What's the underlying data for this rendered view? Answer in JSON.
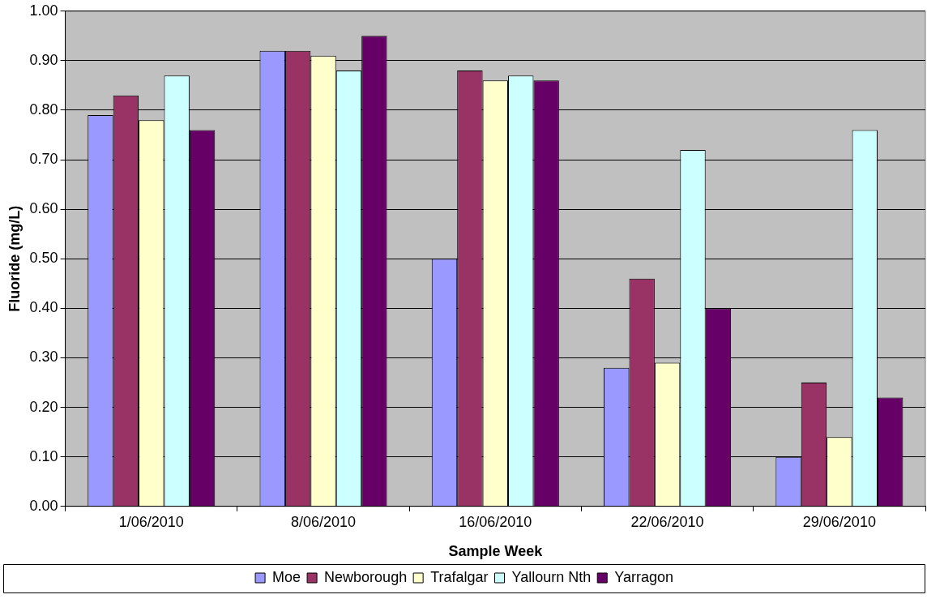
{
  "chart_data": {
    "type": "bar",
    "xlabel": "Sample Week",
    "ylabel": "Fluoride (mg/L)",
    "categories": [
      "1/06/2010",
      "8/06/2010",
      "16/06/2010",
      "22/06/2010",
      "29/06/2010"
    ],
    "series": [
      {
        "name": "Moe",
        "color": "#9999ff",
        "values": [
          0.79,
          0.92,
          0.5,
          0.28,
          0.1
        ]
      },
      {
        "name": "Newborough",
        "color": "#993366",
        "values": [
          0.83,
          0.92,
          0.88,
          0.46,
          0.25
        ]
      },
      {
        "name": "Trafalgar",
        "color": "#ffffcc",
        "values": [
          0.78,
          0.91,
          0.86,
          0.29,
          0.14
        ]
      },
      {
        "name": "Yallourn Nth",
        "color": "#ccffff",
        "values": [
          0.87,
          0.88,
          0.87,
          0.72,
          0.76
        ]
      },
      {
        "name": "Yarragon",
        "color": "#660066",
        "values": [
          0.76,
          0.95,
          0.86,
          0.4,
          0.22
        ]
      }
    ],
    "ylim": [
      0,
      1
    ],
    "yticks": [
      {
        "value": 0,
        "label": "0.00"
      },
      {
        "value": 0.1,
        "label": "0.10"
      },
      {
        "value": 0.2,
        "label": "0.20"
      },
      {
        "value": 0.3,
        "label": "0.30"
      },
      {
        "value": 0.4,
        "label": "0.40"
      },
      {
        "value": 0.5,
        "label": "0.50"
      },
      {
        "value": 0.6,
        "label": "0.60"
      },
      {
        "value": 0.7,
        "label": "0.70"
      },
      {
        "value": 0.8,
        "label": "0.80"
      },
      {
        "value": 0.9,
        "label": "0.90"
      },
      {
        "value": 1,
        "label": "1.00"
      }
    ],
    "grid": "y",
    "legend": "bottom"
  }
}
